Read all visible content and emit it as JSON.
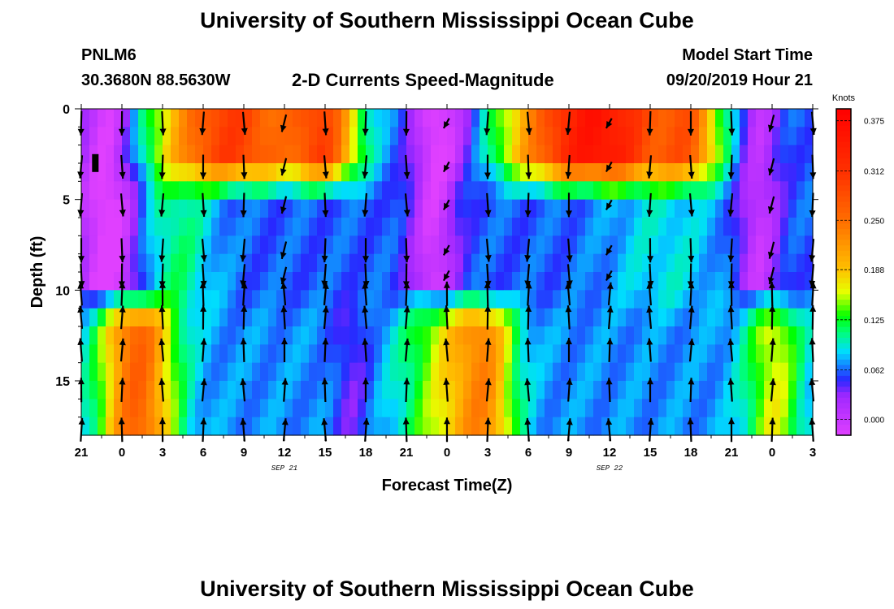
{
  "header": {
    "title_top": "University of Southern Mississippi Ocean Cube",
    "title_bottom": "University of Southern Mississippi Ocean Cube",
    "station": "PNLM6",
    "coords": "30.3680N 88.5630W",
    "plot_title": "2-D Currents Speed-Magnitude",
    "model_label": "Model Start Time",
    "model_time": "09/20/2019 Hour 21"
  },
  "chart_data": {
    "type": "heatmap",
    "xlabel": "Forecast Time(Z)",
    "ylabel": "Depth (ft)",
    "x_tick_labels": [
      "21",
      "0",
      "3",
      "6",
      "9",
      "12",
      "15",
      "18",
      "21",
      "0",
      "3",
      "6",
      "9",
      "12",
      "15",
      "18",
      "21",
      "0",
      "3"
    ],
    "x_range_hours": [
      0,
      54
    ],
    "date_labels": [
      {
        "text": "SEP 21",
        "hour": 15
      },
      {
        "text": "SEP 22",
        "hour": 39
      }
    ],
    "y_ticks": [
      0,
      5,
      10,
      15
    ],
    "y_range": [
      0,
      18
    ],
    "colorbar": {
      "unit": "Knots",
      "ticks": [
        "0.375",
        "0.312",
        "0.250",
        "0.188",
        "0.125",
        "0.062",
        "0.000"
      ],
      "range": [
        -0.02,
        0.39
      ]
    },
    "depth_levels": [
      0.5,
      1.5,
      2.5,
      3.5,
      4.5,
      5.5,
      6.5,
      7.5,
      8.5,
      9.5,
      10.5,
      11.5,
      12.5,
      13.5,
      14.5,
      15.5,
      16.5,
      17.5
    ],
    "colors": {
      "magenta": "#e040ff",
      "blue": "#2020ff",
      "cyan": "#00ffff",
      "green": "#00ff00",
      "yellow": "#ffff00",
      "orange": "#ff7f00",
      "red": "#ff0000"
    }
  }
}
